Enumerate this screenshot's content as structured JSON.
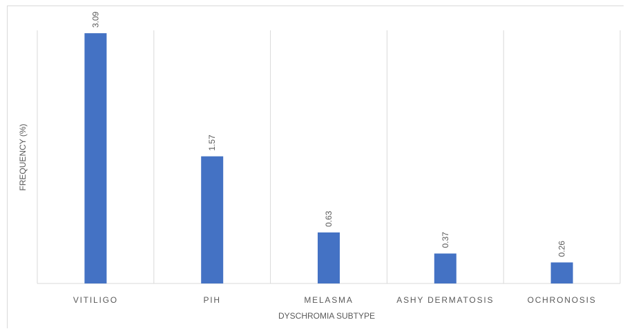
{
  "chart_data": {
    "type": "bar",
    "title": "",
    "xlabel": "DYSCHROMIA SUBTYPE",
    "ylabel": "FREQUENCY (%)",
    "categories": [
      "VITILIGO",
      "PIH",
      "MELASMA",
      "ASHY DERMATOSIS",
      "OCHRONOSIS"
    ],
    "values": [
      3.09,
      1.57,
      0.63,
      0.37,
      0.26
    ],
    "value_labels": [
      "3.09",
      "1.57",
      "0.63",
      "0.37",
      "0.26"
    ],
    "ylim": [
      0,
      3.5
    ],
    "grid": "vertical category separators",
    "legend": "none",
    "bar_color": "#4472c4"
  }
}
